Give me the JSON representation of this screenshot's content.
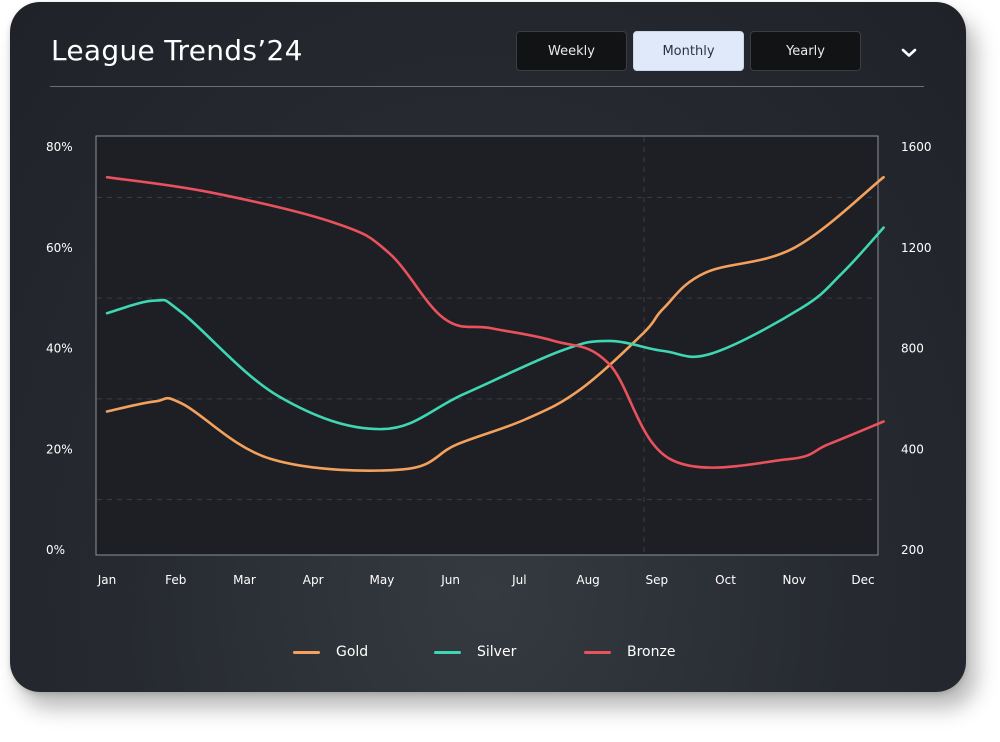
{
  "header": {
    "title": "League Trends’24"
  },
  "filters": {
    "options": [
      "Weekly",
      "Monthly",
      "Yearly"
    ],
    "selected": "Monthly"
  },
  "icons": {
    "expand": "chevron-down-icon"
  },
  "colors": {
    "card": "#262a30",
    "plot": "#1d1f24",
    "gold": "#f4a15d",
    "silver": "#3fd7b3",
    "bronze": "#e9515d",
    "active_button": "#dfe9fa"
  },
  "chart_data": {
    "type": "line",
    "x": [
      "Jan",
      "Feb",
      "Mar",
      "Apr",
      "May",
      "Jun",
      "Jul",
      "Aug",
      "Sep",
      "Oct",
      "Nov",
      "Dec"
    ],
    "y_left": {
      "ticks": [
        "0%",
        "20%",
        "40%",
        "60%",
        "80%"
      ],
      "range": [
        0,
        80
      ]
    },
    "y_right": {
      "ticks": [
        "200",
        "400",
        "800",
        "1200",
        "1600"
      ]
    },
    "grid": true,
    "legend": "bottom",
    "series": [
      {
        "name": "Gold",
        "color": "#f4a15d",
        "points": [
          [
            0,
            27.5
          ],
          [
            0.7,
            29.5
          ],
          [
            1.1,
            29
          ],
          [
            2.4,
            18
          ],
          [
            4.3,
            16
          ],
          [
            5.1,
            21
          ],
          [
            6.1,
            26
          ],
          [
            6.9,
            32
          ],
          [
            7.8,
            43
          ],
          [
            8.1,
            48
          ],
          [
            8.7,
            55
          ],
          [
            10,
            60
          ],
          [
            11.3,
            74
          ]
        ]
      },
      {
        "name": "Silver",
        "color": "#3fd7b3",
        "points": [
          [
            0,
            47
          ],
          [
            0.7,
            49.5
          ],
          [
            1.1,
            47
          ],
          [
            2.5,
            30.5
          ],
          [
            4,
            24
          ],
          [
            5.2,
            31
          ],
          [
            6.6,
            39.5
          ],
          [
            7.3,
            41.5
          ],
          [
            8.1,
            39.5
          ],
          [
            8.8,
            39
          ],
          [
            10.1,
            48
          ],
          [
            10.7,
            55
          ],
          [
            11.3,
            64
          ]
        ]
      },
      {
        "name": "Bronze",
        "color": "#e9515d",
        "points": [
          [
            0,
            74
          ],
          [
            1.5,
            71
          ],
          [
            3.3,
            65
          ],
          [
            4.1,
            59
          ],
          [
            4.9,
            46
          ],
          [
            5.6,
            44
          ],
          [
            6.5,
            41.5
          ],
          [
            7.3,
            37
          ],
          [
            8.2,
            18
          ],
          [
            9.9,
            18
          ],
          [
            10.5,
            21
          ],
          [
            11.3,
            25.5
          ]
        ]
      }
    ]
  }
}
